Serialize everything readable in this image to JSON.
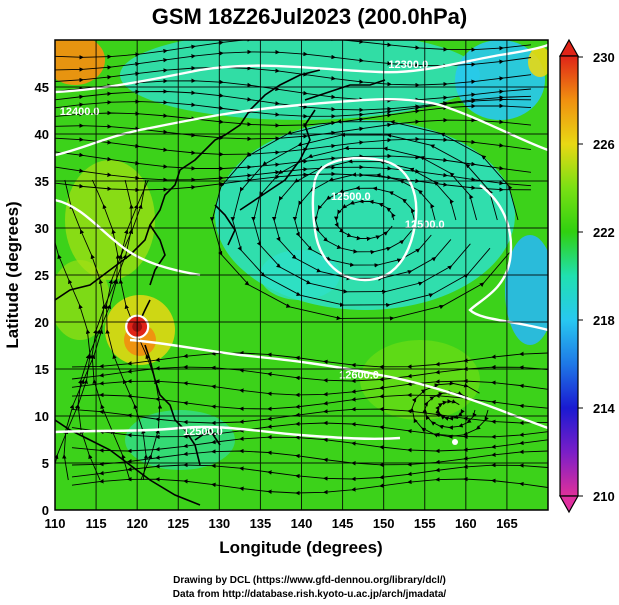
{
  "title": "GSM 18Z26Jul2023 (200.0hPa)",
  "map": {
    "x_axis": {
      "label": "Longitude (degrees)",
      "range": [
        110,
        170
      ],
      "ticks": [
        110,
        115,
        120,
        125,
        130,
        135,
        140,
        145,
        150,
        155,
        160,
        165
      ]
    },
    "y_axis": {
      "label": "Latitude  (degrees)",
      "range": [
        0,
        50
      ],
      "ticks": [
        0,
        5,
        10,
        15,
        20,
        25,
        30,
        35,
        40,
        45
      ]
    },
    "grid": true,
    "contours": [
      {
        "label": "12500.0",
        "lon": 146,
        "lat": 33
      },
      {
        "label": "12400.0",
        "lon": 113,
        "lat": 42
      },
      {
        "label": "12300.0",
        "lon": 153,
        "lat": 47
      },
      {
        "label": "12600.0",
        "lon": 147,
        "lat": 14
      },
      {
        "label": "12500.0",
        "lon": 128,
        "lat": 8
      },
      {
        "label": "12500.0",
        "lon": 155,
        "lat": 30
      }
    ],
    "typhoon_marker": {
      "lon": 120,
      "lat": 19.5
    }
  },
  "colorbar": {
    "ticks": [
      230,
      226,
      222,
      218,
      214,
      210
    ],
    "range": [
      210,
      230
    ],
    "colors": [
      "#e0309a",
      "#7a1ec8",
      "#1a1ad2",
      "#1e78e6",
      "#28c8f0",
      "#20e0b0",
      "#30d010",
      "#7ae014",
      "#e8d814",
      "#f09010",
      "#e02418"
    ]
  },
  "credits": {
    "line1": "Drawing by DCL (https://www.gfd-dennou.org/library/dcl/)",
    "line2": "Data from http://database.rish.kyoto-u.ac.jp/arch/jmadata/"
  }
}
